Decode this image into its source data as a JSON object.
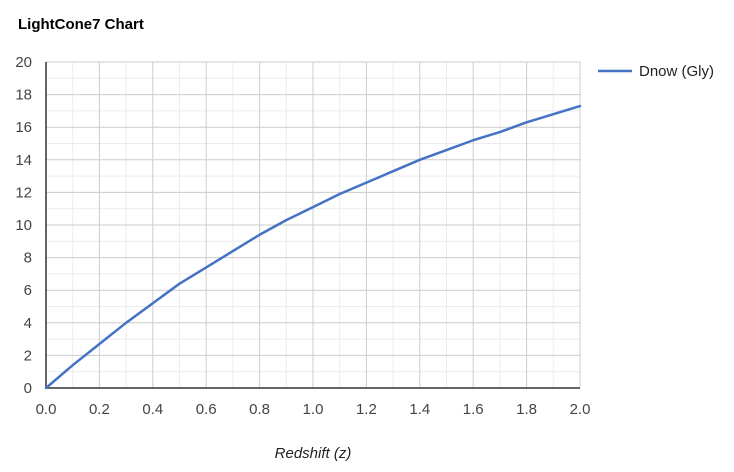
{
  "chart_data": {
    "type": "line",
    "title": "LightCone7 Chart",
    "xlabel": "Redshift (z)",
    "ylabel": "",
    "xlim": [
      0,
      2.0
    ],
    "ylim": [
      0,
      20
    ],
    "x_ticks": [
      "0.0",
      "0.2",
      "0.4",
      "0.6",
      "0.8",
      "1.0",
      "1.2",
      "1.4",
      "1.6",
      "1.8",
      "2.0"
    ],
    "y_ticks": [
      "0",
      "2",
      "4",
      "6",
      "8",
      "10",
      "12",
      "14",
      "16",
      "18",
      "20"
    ],
    "grid": true,
    "legend_position": "right",
    "series": [
      {
        "name": "Dnow (Gly)",
        "color": "#4472c4",
        "x": [
          0.0,
          0.1,
          0.2,
          0.3,
          0.4,
          0.5,
          0.6,
          0.7,
          0.8,
          0.9,
          1.0,
          1.1,
          1.2,
          1.3,
          1.4,
          1.5,
          1.6,
          1.7,
          1.8,
          1.9,
          2.0
        ],
        "y": [
          0.0,
          1.4,
          2.7,
          4.0,
          5.2,
          6.4,
          7.4,
          8.4,
          9.4,
          10.3,
          11.1,
          11.9,
          12.6,
          13.3,
          14.0,
          14.6,
          15.2,
          15.7,
          16.3,
          16.8,
          17.3
        ]
      }
    ]
  }
}
